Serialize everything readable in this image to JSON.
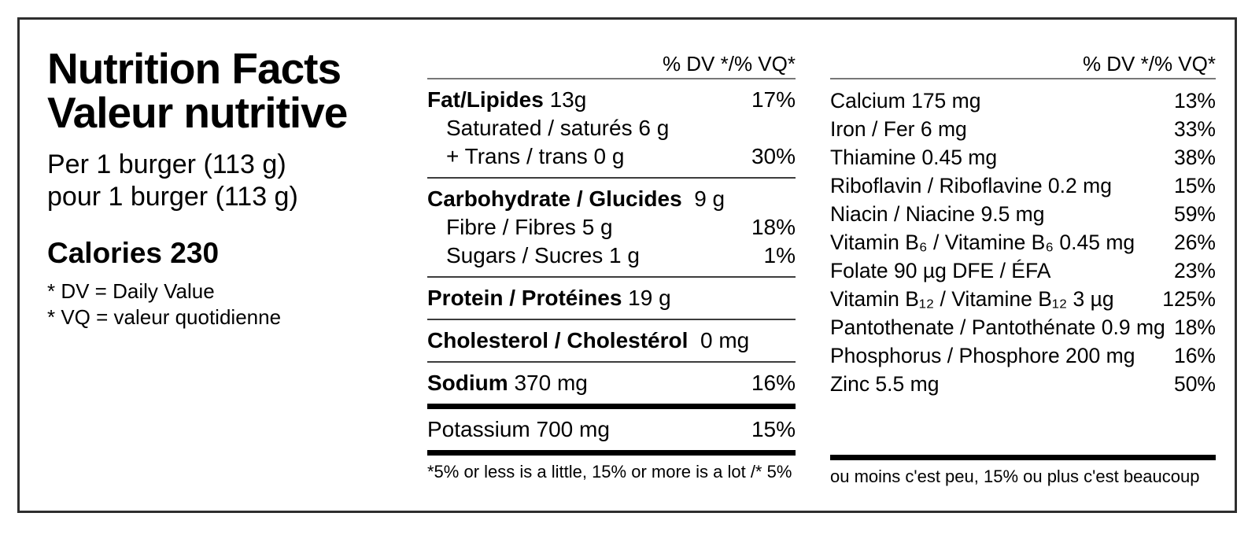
{
  "left": {
    "title_en": "Nutrition Facts",
    "title_fr": "Valeur nutritive",
    "serving_en": "Per 1 burger (113 g)",
    "serving_fr": "pour 1 burger (113 g)",
    "calories": "Calories 230",
    "note_dv": "* DV = Daily Value",
    "note_vq": "* VQ = valeur quotidienne"
  },
  "middle": {
    "header": "% DV */% VQ*",
    "sections": [
      {
        "rows": [
          {
            "bold": "Fat/Lipides",
            "rest": " 13g",
            "pct": "17%"
          },
          {
            "rest": "Saturated / saturés 6 g",
            "indent": true
          },
          {
            "rest": "+ Trans / trans 0 g",
            "pct": "30%",
            "indent": true
          }
        ],
        "divider": "thin"
      },
      {
        "rows": [
          {
            "bold": "Carbohydrate / Glucides",
            "rest": "  9 g"
          },
          {
            "rest": "Fibre / Fibres 5 g",
            "pct": "18%",
            "indent": true
          },
          {
            "rest": "Sugars / Sucres 1 g",
            "pct": "1%",
            "indent": true
          }
        ],
        "divider": "thin"
      },
      {
        "rows": [
          {
            "bold": "Protein / Protéines",
            "rest": " 19 g"
          }
        ],
        "divider": "thin"
      },
      {
        "rows": [
          {
            "bold": "Cholesterol / Cholestérol",
            "rest": "  0 mg"
          }
        ],
        "divider": "thin"
      },
      {
        "rows": [
          {
            "bold": "Sodium",
            "rest": " 370 mg",
            "pct": "16%"
          }
        ],
        "divider": "thick"
      },
      {
        "rows": [
          {
            "rest": "Potassium 700 mg",
            "pct": "15%"
          }
        ],
        "divider": "thick"
      }
    ],
    "footer": "*5% or less is a little, 15% or more is a lot /* 5%"
  },
  "right": {
    "header": "% DV */% VQ*",
    "rows": [
      {
        "rest": "Calcium 175 mg",
        "pct": "13%"
      },
      {
        "rest": "Iron / Fer 6 mg",
        "pct": "33%"
      },
      {
        "rest": "Thiamine 0.45 mg",
        "pct": "38%"
      },
      {
        "rest": "Riboflavin / Riboflavine 0.2 mg",
        "pct": "15%"
      },
      {
        "rest": "Niacin / Niacine 9.5 mg",
        "pct": "59%"
      },
      {
        "rest": "Vitamin B₆ / Vitamine B₆ 0.45 mg",
        "pct": "26%"
      },
      {
        "rest": "Folate 90 µg DFE / ÉFA",
        "pct": "23%"
      },
      {
        "rest": "Vitamin B₁₂ / Vitamine B₁₂ 3 µg",
        "pct": "125%"
      },
      {
        "rest": "Pantothenate / Pantothénate 0.9 mg",
        "pct": "18%"
      },
      {
        "rest": "Phosphorus / Phosphore 200 mg",
        "pct": "16%"
      },
      {
        "rest": "Zinc 5.5 mg",
        "pct": "50%"
      }
    ],
    "footer": "ou moins c'est peu, 15% ou plus c'est beaucoup"
  }
}
